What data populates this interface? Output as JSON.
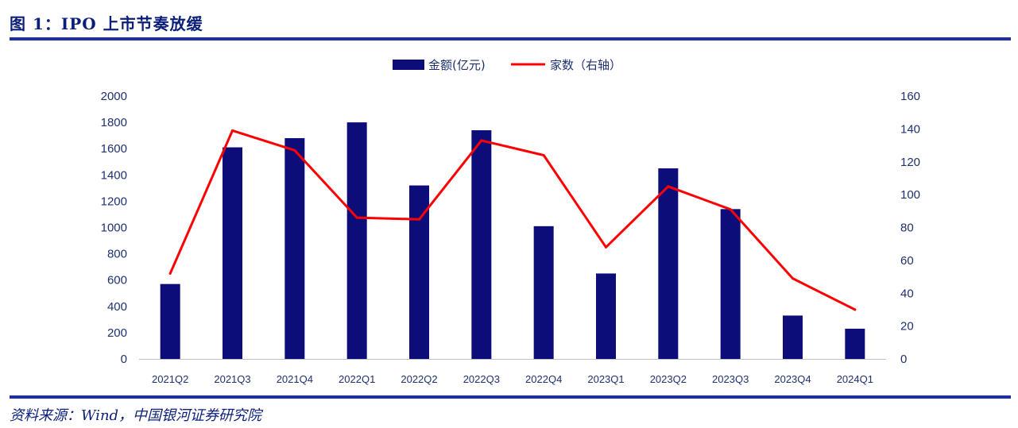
{
  "figure": {
    "title": "图 1：IPO 上市节奏放缓",
    "source": "资料来源：Wind，中国银河证券研究院"
  },
  "chart_data": {
    "type": "bar",
    "categories": [
      "2021Q2",
      "2021Q3",
      "2021Q4",
      "2022Q1",
      "2022Q2",
      "2022Q3",
      "2022Q4",
      "2023Q1",
      "2023Q2",
      "2023Q3",
      "2023Q4",
      "2024Q1"
    ],
    "series": [
      {
        "name": "金额(亿元)",
        "type": "bar",
        "axis": "left",
        "color": "#0d0d7a",
        "values": [
          570,
          1610,
          1680,
          1800,
          1320,
          1740,
          1010,
          650,
          1450,
          1140,
          330,
          230
        ]
      },
      {
        "name": "家数（右轴）",
        "type": "line",
        "axis": "right",
        "color": "#ff0000",
        "values": [
          52,
          139,
          127,
          86,
          85,
          133,
          124,
          68,
          105,
          91,
          49,
          30
        ]
      }
    ],
    "y_left": {
      "min": 0,
      "max": 2000,
      "ticks": [
        "0",
        "200",
        "400",
        "600",
        "800",
        "1000",
        "1200",
        "1400",
        "1600",
        "1800",
        "2000"
      ]
    },
    "y_right": {
      "min": 0,
      "max": 160,
      "ticks": [
        "0",
        "20",
        "40",
        "60",
        "80",
        "100",
        "120",
        "140",
        "160"
      ]
    },
    "legend_position": "top-center",
    "grid": false
  }
}
